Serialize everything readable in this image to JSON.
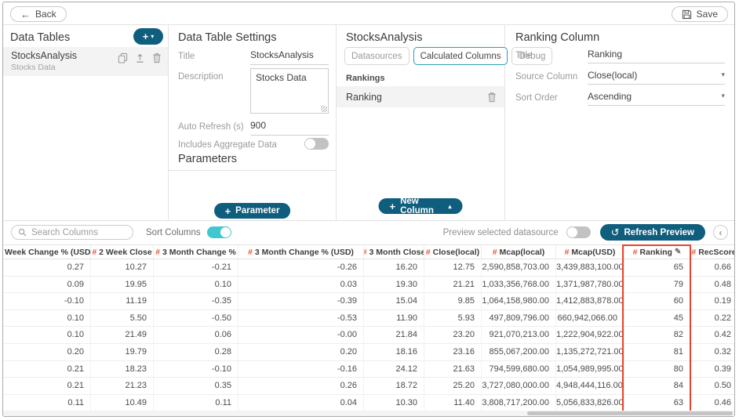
{
  "colors": {
    "accent": "#0f5e7d",
    "toggle_on": "#3fc8cf",
    "tab_active_border": "#2b9cb5",
    "hash_red": "#e8593c",
    "highlight_box": "#e8432e"
  },
  "icons": {
    "back": "←",
    "plus": "+",
    "caret_down": "▾",
    "caret_up": "▴",
    "chevron_left": "‹",
    "pencil": "✎",
    "refresh": "↺",
    "hash": "#"
  },
  "topbar": {
    "back_label": "Back",
    "save_label": "Save"
  },
  "data_tables_panel": {
    "title": "Data Tables",
    "items": [
      {
        "name": "StocksAnalysis",
        "description": "Stocks Data"
      }
    ]
  },
  "settings_panel": {
    "title": "Data Table Settings",
    "title_label": "Title",
    "title_value": "StocksAnalysis",
    "description_label": "Description",
    "description_value": "Stocks Data",
    "auto_refresh_label": "Auto Refresh (s)",
    "auto_refresh_value": "900",
    "aggregate_label": "Includes Aggregate Data",
    "aggregate_on": false,
    "parameters_title": "Parameters",
    "add_parameter_label": "Parameter"
  },
  "columns_panel": {
    "title": "StocksAnalysis",
    "tabs": [
      {
        "label": "Datasources",
        "active": false
      },
      {
        "label": "Calculated Columns",
        "active": true
      },
      {
        "label": "Debug",
        "active": false
      }
    ],
    "group_label": "Rankings",
    "items": [
      {
        "name": "Ranking"
      }
    ],
    "new_column_label": "New Column"
  },
  "ranking_panel": {
    "title": "Ranking Column",
    "title_label": "Title",
    "title_value": "Ranking",
    "source_label": "Source Column",
    "source_value": "Close(local)",
    "sort_label": "Sort Order",
    "sort_value": "Ascending"
  },
  "preview": {
    "search_placeholder": "Search Columns",
    "sort_columns_label": "Sort Columns",
    "sort_columns_on": true,
    "preview_datasource_label": "Preview selected datasource",
    "preview_datasource_on": false,
    "refresh_label": "Refresh Preview"
  },
  "table": {
    "columns": [
      {
        "label": "Week Change % (USD)",
        "hash": false,
        "edit": false
      },
      {
        "label": "2 Week Close",
        "hash": true,
        "edit": false
      },
      {
        "label": "3 Month Change %",
        "hash": true,
        "edit": false
      },
      {
        "label": "3 Month Change % (USD)",
        "hash": true,
        "edit": false
      },
      {
        "label": "3 Month Close",
        "hash": true,
        "edit": false
      },
      {
        "label": "Close(local)",
        "hash": true,
        "edit": false
      },
      {
        "label": "Mcap(local)",
        "hash": true,
        "edit": false
      },
      {
        "label": "Mcap(USD)",
        "hash": true,
        "edit": false
      },
      {
        "label": "Ranking",
        "hash": true,
        "edit": true
      },
      {
        "label": "RecScore",
        "hash": true,
        "edit": false
      }
    ],
    "rows": [
      [
        "0.27",
        "10.27",
        "-0.21",
        "-0.26",
        "16.20",
        "12.75",
        "2,590,858,703.00",
        "3,439,883,100.00",
        "65",
        "0.66"
      ],
      [
        "0.09",
        "19.95",
        "0.10",
        "0.03",
        "19.30",
        "21.21",
        "1,033,356,768.00",
        "1,371,987,780.00",
        "79",
        "0.48"
      ],
      [
        "-0.10",
        "11.19",
        "-0.35",
        "-0.39",
        "15.04",
        "9.85",
        "1,064,158,980.00",
        "1,412,883,878.00",
        "60",
        "0.19"
      ],
      [
        "0.10",
        "5.50",
        "-0.50",
        "-0.53",
        "11.90",
        "5.93",
        "497,809,796.00",
        "660,942,066.00",
        "45",
        "0.22"
      ],
      [
        "0.10",
        "21.49",
        "0.06",
        "-0.00",
        "21.84",
        "23.20",
        "921,070,213.00",
        "1,222,904,922.00",
        "82",
        "0.42"
      ],
      [
        "0.20",
        "19.79",
        "0.28",
        "0.20",
        "18.16",
        "23.16",
        "855,067,200.00",
        "1,135,272,721.00",
        "81",
        "0.32"
      ],
      [
        "0.21",
        "18.23",
        "-0.10",
        "-0.16",
        "24.12",
        "21.63",
        "794,599,680.00",
        "1,054,989,995.00",
        "80",
        "0.39"
      ],
      [
        "0.21",
        "21.23",
        "0.35",
        "0.26",
        "18.72",
        "25.20",
        "3,727,080,000.00",
        "4,948,444,116.00",
        "84",
        "0.50"
      ],
      [
        "0.11",
        "10.49",
        "0.11",
        "0.04",
        "10.30",
        "11.40",
        "3,808,717,200.00",
        "5,056,833,826.00",
        "63",
        "0.46"
      ]
    ]
  }
}
